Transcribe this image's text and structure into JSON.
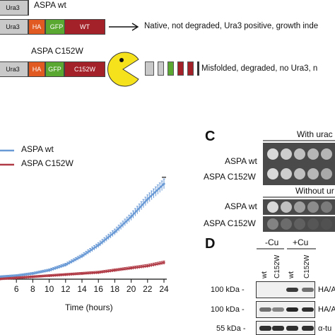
{
  "panel_a": {
    "row1": {
      "title": "ASPA wt",
      "boxes": [
        "Ura3",
        "HA",
        "GFP",
        "WT"
      ],
      "outcome": "Native, not degraded, Ura3 positive, growth inde"
    },
    "row2": {
      "title": "ASPA C152W",
      "boxes": [
        "Ura3",
        "HA",
        "GFP",
        "C152W"
      ],
      "outcome": "Misfolded, degraded, no Ura3, n"
    }
  },
  "panel_b": {
    "legend": [
      "ASPA wt",
      "ASPA C152W"
    ],
    "x_tick_labels": [
      "6",
      "8",
      "10",
      "12",
      "14",
      "16",
      "18",
      "20",
      "22",
      "24"
    ],
    "xlabel": "Time (hours)"
  },
  "panel_c": {
    "letter": "C",
    "top_title": "With urac",
    "bottom_title": "Without ur",
    "rows": [
      "ASPA wt",
      "ASPA C152W"
    ],
    "plate_top": [
      [
        0.9,
        0.85,
        0.8,
        0.75,
        0.75
      ],
      [
        0.9,
        0.85,
        0.8,
        0.75,
        0.7
      ]
    ],
    "plate_bottom": [
      [
        0.9,
        0.8,
        0.65,
        0.55,
        0.45
      ],
      [
        0.5,
        0.35,
        0.25,
        0.15,
        0.1
      ]
    ]
  },
  "panel_d": {
    "letter": "D",
    "groups": [
      "-Cu",
      "+Cu"
    ],
    "lanes": [
      "wt",
      "C152W",
      "wt",
      "C152W"
    ],
    "rows": [
      {
        "marker": "100 kDa -",
        "target": "HA/A"
      },
      {
        "marker": "100 kDa -",
        "target": "HA/A"
      },
      {
        "marker": "55 kDa -",
        "target": "α-tu"
      }
    ],
    "band_intensity": [
      [
        0.0,
        0.0,
        0.85,
        0.6
      ],
      [
        0.6,
        0.5,
        0.95,
        0.9
      ],
      [
        0.9,
        0.9,
        0.9,
        0.9
      ]
    ]
  },
  "chart_data": {
    "type": "line",
    "title": "",
    "xlabel": "Time (hours)",
    "ylabel": "",
    "xlim": [
      4,
      24
    ],
    "ylim": [
      0,
      1
    ],
    "legend_placement": "top-left",
    "series": [
      {
        "name": "ASPA wt",
        "color": "#6a9ad6",
        "x": [
          4,
          6,
          8,
          10,
          12,
          14,
          16,
          18,
          20,
          22,
          24
        ],
        "y": [
          0.02,
          0.03,
          0.05,
          0.08,
          0.13,
          0.21,
          0.31,
          0.43,
          0.57,
          0.73,
          0.87
        ]
      },
      {
        "name": "ASPA C152W",
        "color": "#b03a45",
        "x": [
          4,
          6,
          8,
          10,
          12,
          14,
          16,
          18,
          20,
          22,
          24
        ],
        "y": [
          0.0,
          0.01,
          0.02,
          0.03,
          0.04,
          0.05,
          0.06,
          0.08,
          0.1,
          0.12,
          0.15
        ]
      }
    ]
  }
}
